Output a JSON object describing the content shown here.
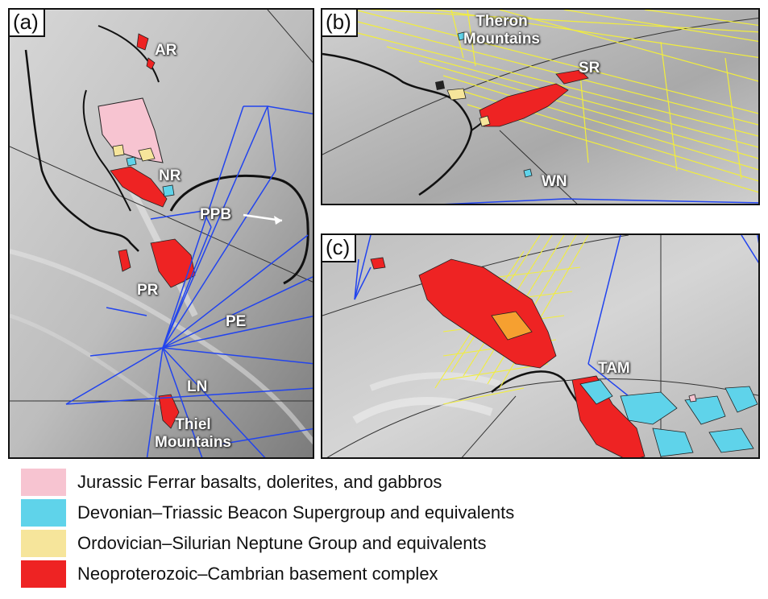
{
  "colors": {
    "ferrar": "#f7c4d1",
    "beacon": "#5fd3ea",
    "neptune": "#f6e59b",
    "basement": "#ee2323",
    "flightlines_blue": "#2244ee",
    "flightlines_yellow": "#f2ee3c"
  },
  "panels": {
    "a": {
      "tag": "(a)",
      "labels": {
        "ar": "AR",
        "nr": "NR",
        "ppb": "PPB",
        "pr": "PR",
        "pe": "PE",
        "ln": "LN",
        "thiel": "Thiel\nMountains"
      }
    },
    "b": {
      "tag": "(b)",
      "labels": {
        "theron": "Theron\nMountains",
        "sr": "SR",
        "wn": "WN"
      }
    },
    "c": {
      "tag": "(c)",
      "labels": {
        "tam": "TAM"
      }
    }
  },
  "legend": [
    {
      "label": "Jurassic Ferrar basalts, dolerites, and gabbros",
      "color_key": "ferrar"
    },
    {
      "label": "Devonian–Triassic Beacon Supergroup and equivalents",
      "color_key": "beacon"
    },
    {
      "label": "Ordovician–Silurian Neptune Group and equivalents",
      "color_key": "neptune"
    },
    {
      "label": "Neoproterozoic–Cambrian basement complex",
      "color_key": "basement"
    }
  ]
}
